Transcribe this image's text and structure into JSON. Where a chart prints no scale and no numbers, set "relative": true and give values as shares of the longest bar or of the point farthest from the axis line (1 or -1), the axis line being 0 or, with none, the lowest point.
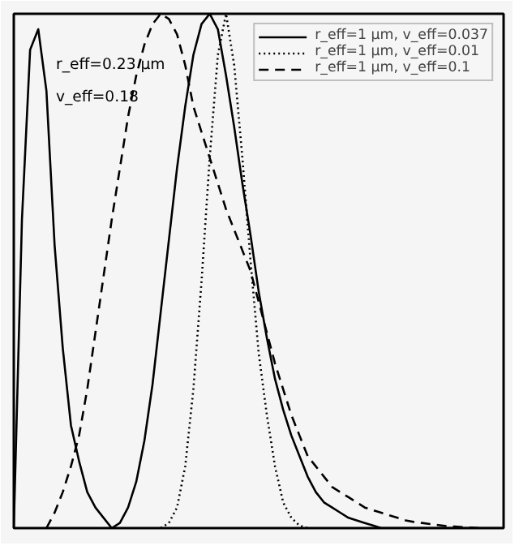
{
  "chart_data": {
    "type": "line",
    "relative": true,
    "legend": "top right",
    "grid": false,
    "marker": "none",
    "categories": [
      null,
      null,
      null,
      null,
      null,
      null,
      null,
      null,
      null,
      null,
      null,
      null,
      null,
      null,
      null,
      null,
      null,
      null,
      null,
      null,
      null,
      null,
      null,
      null,
      null,
      null,
      null,
      null,
      null,
      null,
      null,
      null,
      null,
      null,
      null,
      null,
      null,
      null,
      null,
      null,
      null,
      null,
      null,
      null,
      null,
      null,
      null,
      null,
      null,
      null,
      null,
      null,
      null,
      null,
      null,
      null,
      null,
      null,
      null,
      null,
      null
    ],
    "annotations": [
      "r_eff=0.23 μm",
      "v_eff=0.18"
    ],
    "series": [
      {
        "color": "#000000",
        "line_style": "solid",
        "values": [
          0,
          0.6,
          0.93,
          0.97,
          0.85,
          0.55,
          0.35,
          0.2,
          0.13,
          0.07,
          0.04,
          0.02,
          0,
          null,
          null,
          null,
          null,
          null,
          null,
          null,
          null,
          null,
          null,
          null,
          null,
          null,
          null,
          null,
          null,
          null,
          null,
          null,
          null,
          null,
          null,
          null,
          null,
          null,
          null,
          null,
          null,
          null,
          null,
          null,
          null,
          null,
          null,
          null,
          null,
          null,
          null,
          null,
          null,
          null,
          null,
          null,
          null,
          null,
          null,
          null,
          null
        ]
      },
      {
        "name": "r_eff=1 μm, v_eff=0.037",
        "color": "#000000",
        "line_style": "solid",
        "values": [
          null,
          null,
          null,
          null,
          null,
          null,
          null,
          null,
          null,
          null,
          null,
          null,
          0,
          0.01,
          0.04,
          0.09,
          0.17,
          0.28,
          0.42,
          0.56,
          0.7,
          0.82,
          0.92,
          0.98,
          1.0,
          0.97,
          0.88,
          0.78,
          0.67,
          0.57,
          0.46,
          0.37,
          0.29,
          0.23,
          0.18,
          0.14,
          0.1,
          0.07,
          0.05,
          0.04,
          0.03,
          0.02,
          0.015,
          0.01,
          0.005,
          0,
          0,
          0,
          0,
          0,
          0,
          0,
          0,
          0,
          0,
          0,
          0,
          0,
          0,
          0,
          0
        ]
      },
      {
        "name": "r_eff=1 μm, v_eff=0.01",
        "color": "#000000",
        "line_style": "dotted",
        "values": [
          null,
          null,
          null,
          null,
          null,
          null,
          null,
          null,
          null,
          null,
          null,
          null,
          null,
          null,
          null,
          null,
          null,
          null,
          0,
          0.01,
          0.04,
          0.12,
          0.27,
          0.48,
          0.72,
          0.92,
          1.0,
          0.9,
          0.72,
          0.52,
          0.34,
          0.22,
          0.12,
          0.05,
          0.02,
          0.005,
          0,
          null,
          null,
          null,
          null,
          null,
          null,
          null,
          null,
          null,
          null,
          null,
          null,
          null,
          null,
          null,
          null,
          null,
          null,
          null,
          null,
          null,
          null,
          null,
          null
        ]
      },
      {
        "name": "r_eff=1 μm, v_eff=0.1",
        "color": "#000000",
        "line_style": "dashed",
        "values": [
          null,
          null,
          null,
          null,
          0,
          0.03,
          0.07,
          0.12,
          0.18,
          0.27,
          0.38,
          0.49,
          0.6,
          0.7,
          0.8,
          0.88,
          0.94,
          0.98,
          1.0,
          0.99,
          0.96,
          0.9,
          0.82,
          0.77,
          0.72,
          0.67,
          0.62,
          0.58,
          0.54,
          0.5,
          0.44,
          0.38,
          0.32,
          0.27,
          0.22,
          0.18,
          0.14,
          0.12,
          0.1,
          0.08,
          0.07,
          0.06,
          0.05,
          0.04,
          0.035,
          0.03,
          0.025,
          0.02,
          0.015,
          0.012,
          0.01,
          0.008,
          0.006,
          0.004,
          0.003,
          0.002,
          0.001,
          0,
          null,
          null,
          null
        ]
      }
    ]
  }
}
